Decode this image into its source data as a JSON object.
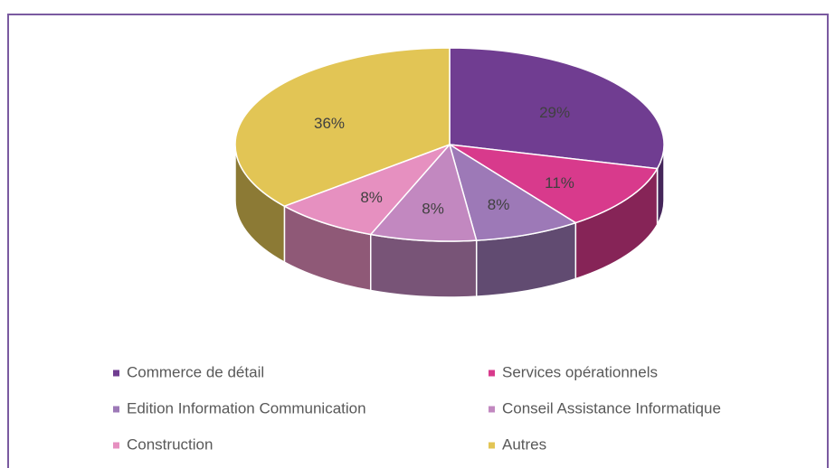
{
  "chart_data": {
    "type": "pie",
    "categories": [
      "Commerce de détail",
      "Services opérationnels",
      "Edition Information Communication",
      "Conseil Assistance Informatique",
      "Construction",
      "Autres"
    ],
    "values": [
      29,
      11,
      8,
      8,
      8,
      36
    ],
    "value_labels": [
      "29%",
      "11%",
      "8%",
      "8%",
      "8%",
      "36%"
    ],
    "colors": [
      "#703d91",
      "#d83a8c",
      "#9d79b7",
      "#c288c0",
      "#e690c0",
      "#e2c555"
    ],
    "legend": "bottom"
  }
}
